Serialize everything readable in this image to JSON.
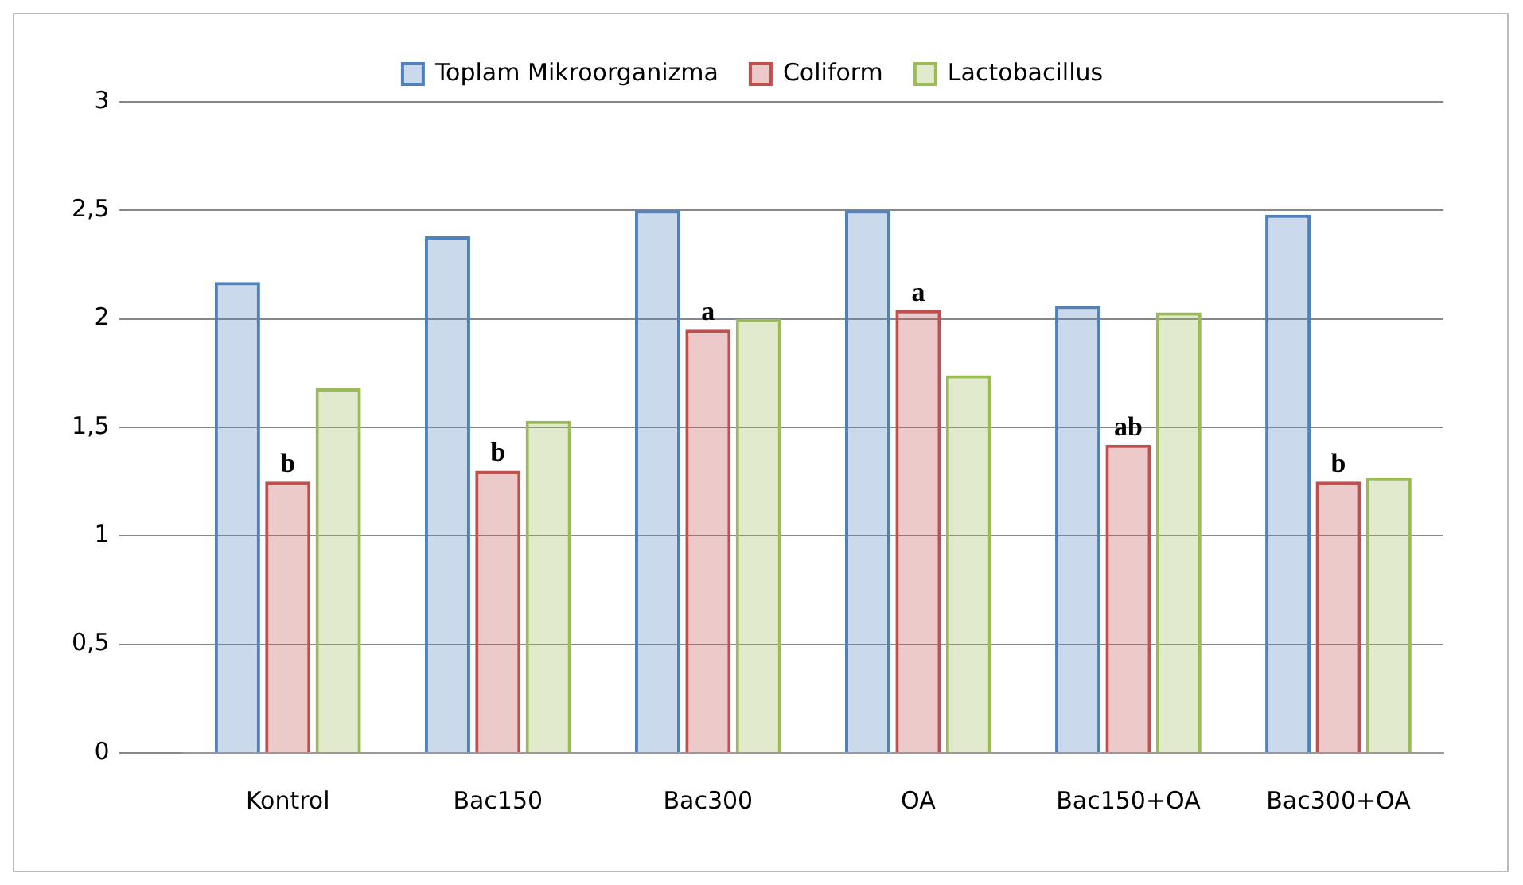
{
  "chart_data": {
    "type": "bar",
    "categories": [
      "Kontrol",
      "Bac150",
      "Bac300",
      "OA",
      "Bac150+OA",
      "Bac300+OA"
    ],
    "series": [
      {
        "name": "Toplam Mikroorganizma",
        "color": "#4f81bd",
        "values": [
          2.17,
          2.38,
          2.5,
          2.5,
          2.06,
          2.48
        ]
      },
      {
        "name": "Coliform",
        "color": "#c0504d",
        "values": [
          1.25,
          1.3,
          1.95,
          2.04,
          1.42,
          1.25
        ]
      },
      {
        "name": "Lactobacillus",
        "color": "#9bbb59",
        "values": [
          1.68,
          1.53,
          2.0,
          1.74,
          2.03,
          1.27
        ]
      }
    ],
    "ylim": [
      0,
      3
    ],
    "yticks": [
      {
        "value": 0,
        "label": "0"
      },
      {
        "value": 0.5,
        "label": "0,5"
      },
      {
        "value": 1,
        "label": "1"
      },
      {
        "value": 1.5,
        "label": "1,5"
      },
      {
        "value": 2,
        "label": "2"
      },
      {
        "value": 2.5,
        "label": "2,5"
      },
      {
        "value": 3,
        "label": "3"
      }
    ],
    "grid": "y",
    "legend": "top",
    "annotations": [
      {
        "text": "b",
        "x": "Kontrol",
        "y": 1.25
      },
      {
        "text": "b",
        "x": "Bac150",
        "y": 1.3
      },
      {
        "text": "a",
        "x": "Bac300",
        "y": 1.95
      },
      {
        "text": "a",
        "x": "OA",
        "y": 2.04
      },
      {
        "text": "ab",
        "x": "Bac150+OA",
        "y": 1.42
      },
      {
        "text": "b",
        "x": "Bac300+OA",
        "y": 1.25
      }
    ]
  }
}
